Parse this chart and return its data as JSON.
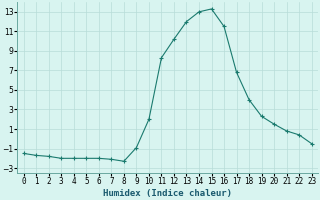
{
  "x": [
    0,
    1,
    2,
    3,
    4,
    5,
    6,
    7,
    8,
    9,
    10,
    11,
    12,
    13,
    14,
    15,
    16,
    17,
    18,
    19,
    20,
    21,
    22,
    23
  ],
  "y": [
    -1.5,
    -1.7,
    -1.8,
    -2.0,
    -2.0,
    -2.0,
    -2.0,
    -2.1,
    -2.3,
    -0.9,
    2.0,
    8.3,
    10.2,
    12.0,
    13.0,
    13.3,
    11.5,
    6.8,
    4.0,
    2.3,
    1.5,
    0.8,
    0.4,
    -0.5
  ],
  "line_color": "#1a7a6e",
  "marker": "+",
  "marker_size": 3,
  "marker_lw": 0.8,
  "line_width": 0.8,
  "bg_color": "#d8f4f0",
  "grid_color": "#b8ddd8",
  "xlabel": "Humidex (Indice chaleur)",
  "xlim": [
    -0.5,
    23.5
  ],
  "ylim": [
    -3.5,
    14.0
  ],
  "yticks": [
    -3,
    -1,
    1,
    3,
    5,
    7,
    9,
    11,
    13
  ],
  "xtick_labels": [
    "0",
    "1",
    "2",
    "3",
    "4",
    "5",
    "6",
    "7",
    "8",
    "9",
    "10",
    "11",
    "12",
    "13",
    "14",
    "15",
    "16",
    "17",
    "18",
    "19",
    "20",
    "21",
    "22",
    "23"
  ],
  "label_fontsize": 6.5,
  "tick_fontsize": 5.5,
  "spine_color": "#6aa8a0"
}
